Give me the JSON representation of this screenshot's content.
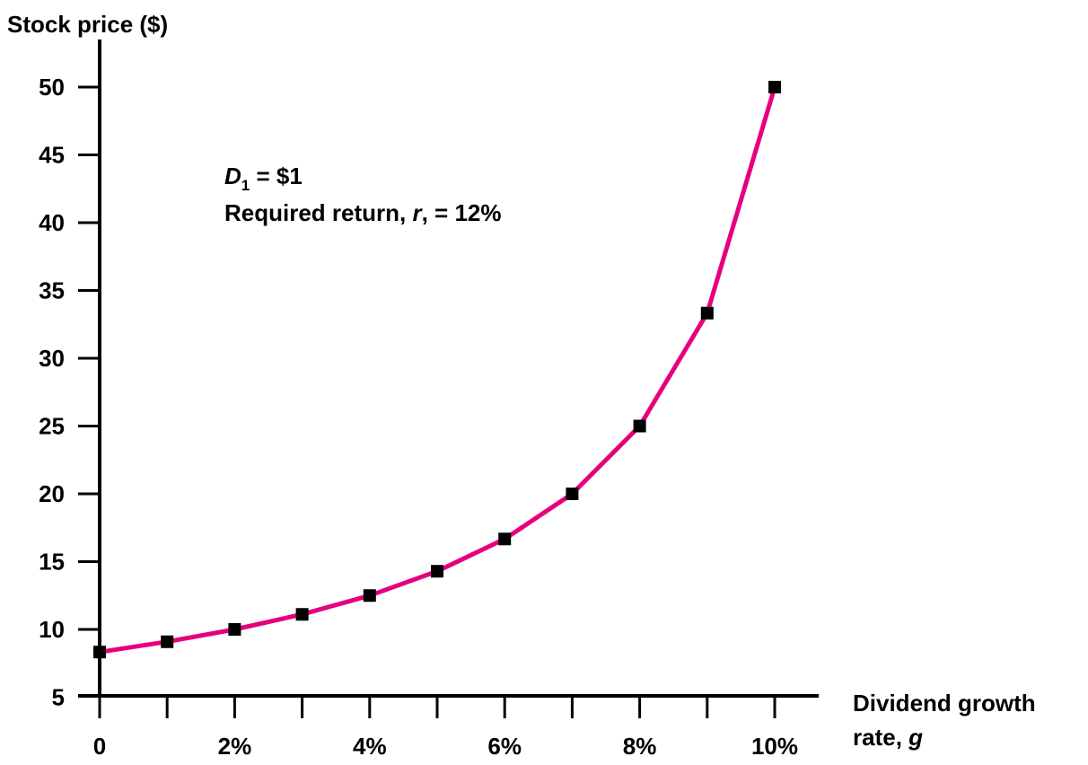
{
  "chart_data": {
    "type": "line",
    "title": "",
    "ylabel": "Stock price ($)",
    "xlabel_line1": "Dividend growth",
    "xlabel_line2_text": "rate, ",
    "xlabel_line2_var": "g",
    "x": [
      0,
      1,
      2,
      3,
      4,
      5,
      6,
      7,
      8,
      9,
      10
    ],
    "x_tick_labels": [
      "0",
      "",
      "2%",
      "",
      "4%",
      "",
      "6%",
      "",
      "8%",
      "",
      "10%"
    ],
    "y_ticks": [
      5,
      10,
      15,
      20,
      25,
      30,
      35,
      40,
      45,
      50
    ],
    "y_tick_labels": [
      "5",
      "10",
      "15",
      "20",
      "25",
      "30",
      "35",
      "40",
      "45",
      "50"
    ],
    "ylim": [
      5,
      52
    ],
    "xlim": [
      0,
      10
    ],
    "series": [
      {
        "values": [
          8.33,
          9.09,
          10.0,
          11.11,
          12.5,
          14.29,
          16.67,
          20.0,
          25.0,
          33.33,
          50.0
        ],
        "color": "#e6007e",
        "marker": "square",
        "marker_color": "#000000"
      }
    ],
    "annotations": {
      "d1_var": "D",
      "d1_sub": "1",
      "d1_rest": " = $1",
      "req_prefix": "Required return, ",
      "req_var": "r",
      "req_suffix": ", = 12%"
    },
    "grid": false
  }
}
